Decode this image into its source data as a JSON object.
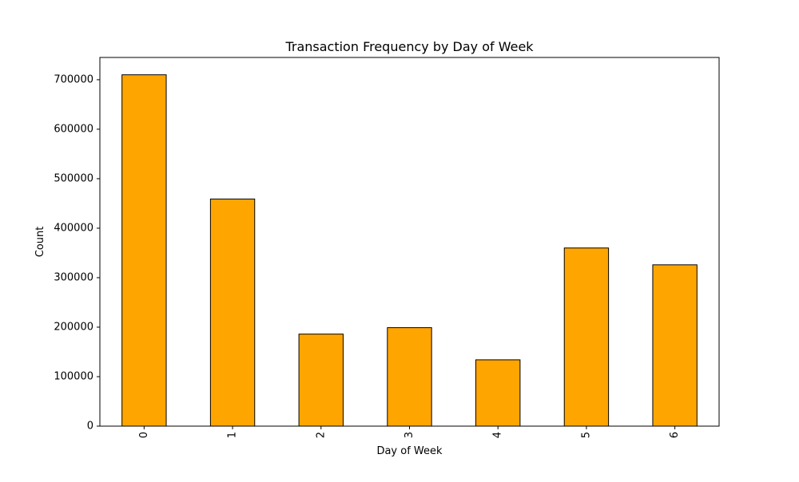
{
  "chart_data": {
    "type": "bar",
    "title": "Transaction Frequency by Day of Week",
    "xlabel": "Day of Week",
    "ylabel": "Count",
    "categories": [
      "0",
      "1",
      "2",
      "3",
      "4",
      "5",
      "6"
    ],
    "values": [
      710000,
      459000,
      186000,
      199000,
      134000,
      360000,
      326000
    ],
    "ylim": [
      0,
      745000
    ],
    "yticks": [
      0,
      100000,
      200000,
      300000,
      400000,
      500000,
      600000,
      700000
    ],
    "xtick_rotation": "vertical",
    "grid": false,
    "legend": "none",
    "colors": {
      "bar_fill": "#FFA500",
      "bar_edge": "#000000",
      "axes": "#000000"
    }
  }
}
